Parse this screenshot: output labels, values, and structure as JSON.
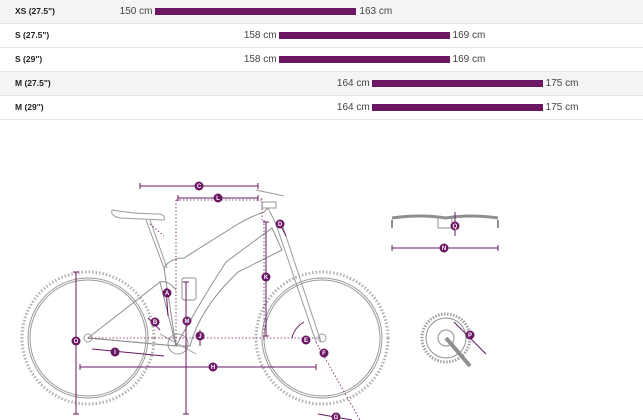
{
  "size_ranges": {
    "unit": "cm",
    "bar_color": "#6b1763",
    "scale_min_cm": 141,
    "scale_max_cm": 180.5,
    "rows": [
      {
        "label": "XS (27.5\")",
        "min_text": "150 cm",
        "max_text": "163 cm",
        "min": 150,
        "max": 163
      },
      {
        "label": "S (27.5\")",
        "min_text": "158 cm",
        "max_text": "169 cm",
        "min": 158,
        "max": 169
      },
      {
        "label": "S (29\")",
        "min_text": "158 cm",
        "max_text": "169 cm",
        "min": 158,
        "max": 169
      },
      {
        "label": "M (27.5\")",
        "min_text": "164 cm",
        "max_text": "175 cm",
        "min": 164,
        "max": 175
      },
      {
        "label": "M (29\")",
        "min_text": "164 cm",
        "max_text": "175 cm",
        "min": 164,
        "max": 175
      }
    ]
  },
  "geometry_diagram": {
    "accent_color": "#6b1763",
    "markers": {
      "A": "A",
      "B": "B",
      "C": "C",
      "D": "D",
      "E": "E",
      "F": "F",
      "G": "G",
      "H": "H",
      "I": "I",
      "J": "J",
      "K": "K",
      "L": "L",
      "M": "M",
      "N": "N",
      "O": "O",
      "P": "P",
      "Q": "Q"
    }
  }
}
